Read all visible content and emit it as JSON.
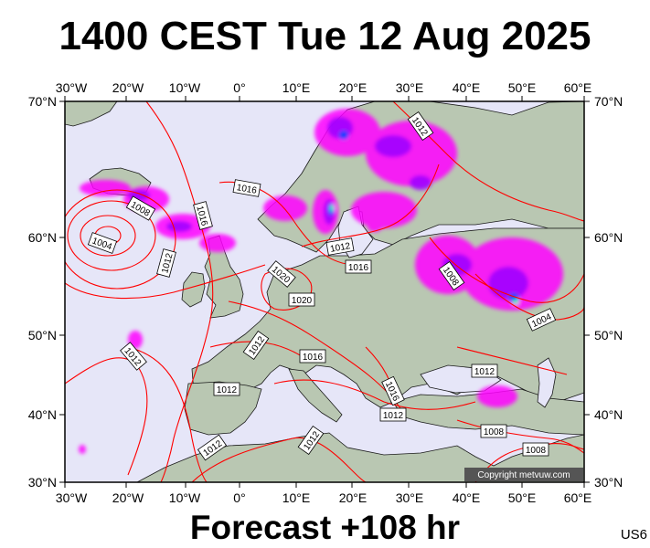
{
  "header": {
    "title": "1400 CEST Tue 12 Aug 2025"
  },
  "footer": {
    "forecast": "Forecast +108 hr"
  },
  "model_code": "US6",
  "copyright": "Copyright metvuw.com",
  "axes": {
    "top_lon": [
      "30°W",
      "20°W",
      "10°W",
      "0°",
      "10°E",
      "20°E",
      "30°E",
      "40°E",
      "50°E",
      "60°E"
    ],
    "bottom_lon": [
      "30°W",
      "20°W",
      "10°W",
      "0°",
      "10°E",
      "20°E",
      "30°E",
      "40°E",
      "50°E",
      "60°E"
    ],
    "left_lat": [
      "70°N",
      "60°N",
      "50°N",
      "40°N",
      "30°N"
    ],
    "right_lat": [
      "70°N",
      "60°N",
      "50°N",
      "40°N",
      "30°N"
    ]
  },
  "isobar_labels": [
    "1008",
    "1004",
    "1012",
    "1016",
    "1016",
    "1012",
    "1012",
    "1016",
    "1020",
    "1020",
    "1012",
    "1016",
    "1012",
    "1012",
    "1016",
    "1012",
    "1012",
    "1012",
    "1012",
    "1008",
    "1004",
    "1012",
    "1012",
    "1008",
    "1008"
  ],
  "colors": {
    "ocean": "#e6e6f8",
    "land": "#b9c7b2",
    "isobar": "#ff0000",
    "precip_light": "#ff00ff",
    "precip_medium": "#a000ff",
    "precip_heavy": "#0040ff",
    "precip_extreme": "#00ffaa"
  }
}
